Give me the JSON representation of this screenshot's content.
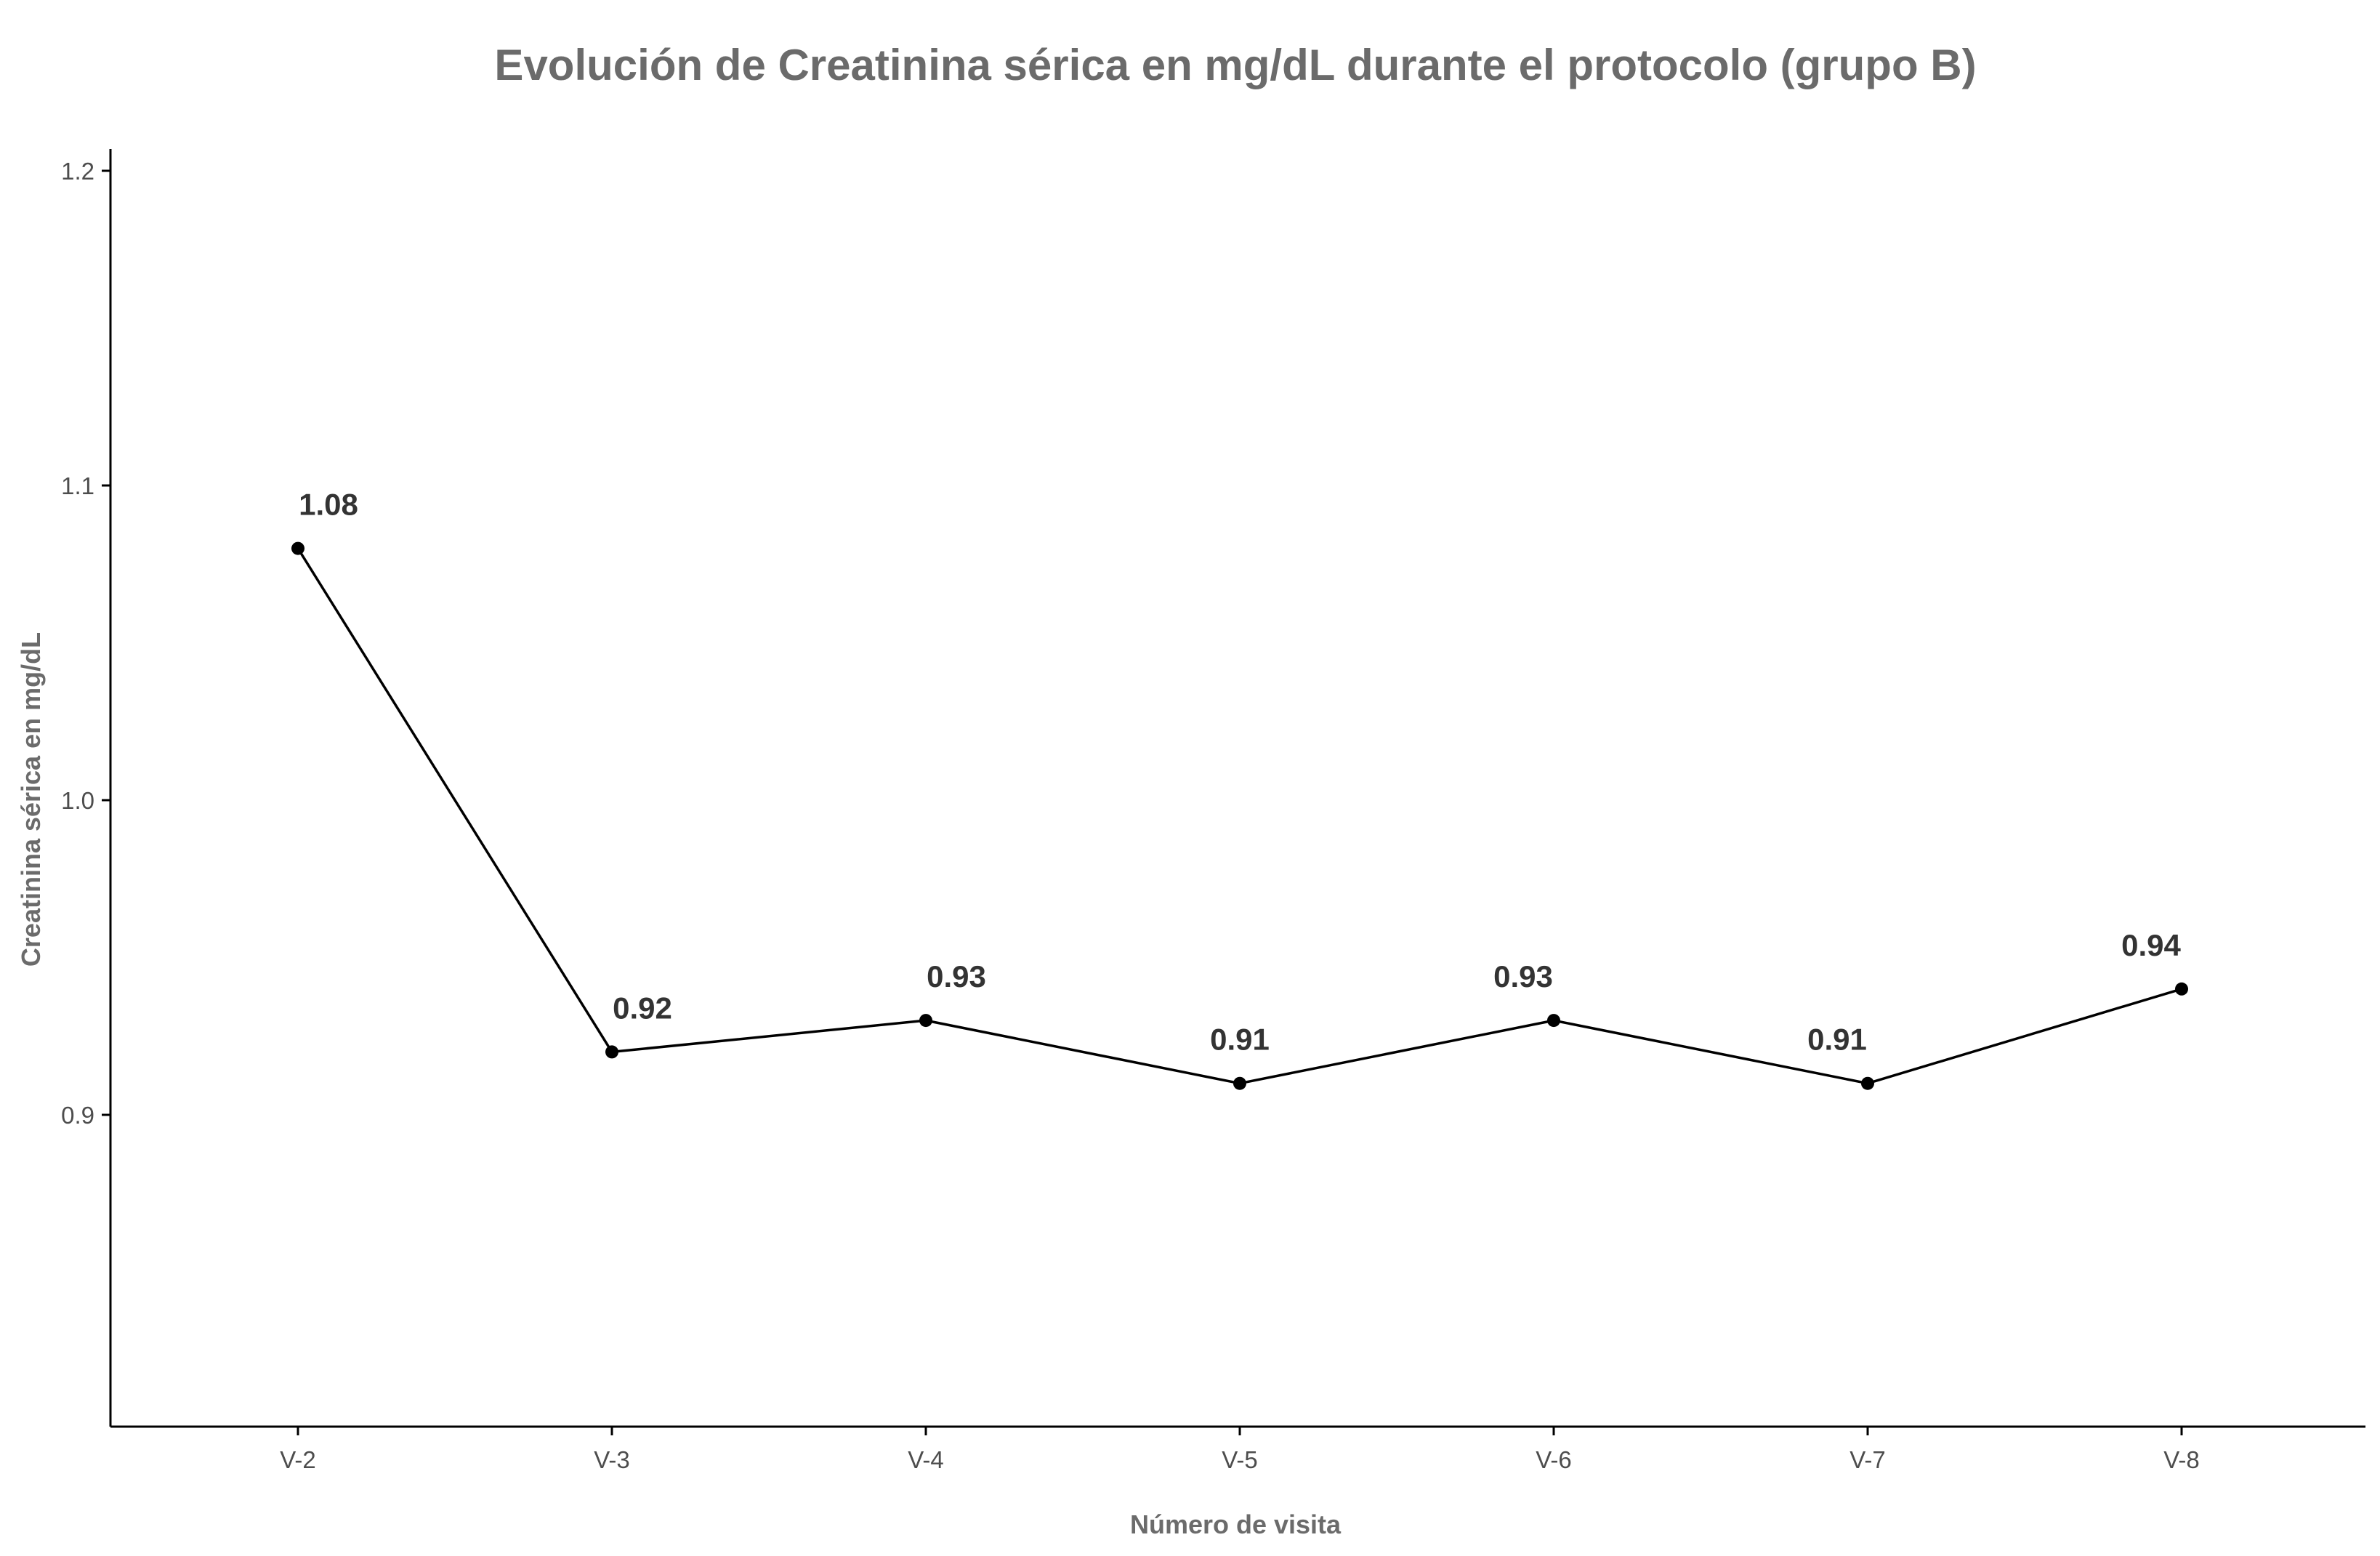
{
  "chart_data": {
    "type": "line",
    "title": "Evolución de Creatinina sérica en mg/dL durante el protocolo (grupo B)",
    "xlabel": "Número de visita",
    "ylabel": "Creatinina sérica en mg/dL",
    "categories": [
      "V-2",
      "V-3",
      "V-4",
      "V-5",
      "V-6",
      "V-7",
      "V-8"
    ],
    "values": [
      1.08,
      0.92,
      0.93,
      0.91,
      0.93,
      0.91,
      0.94
    ],
    "data_labels": [
      "1.08",
      "0.92",
      "0.93",
      "0.91",
      "0.93",
      "0.91",
      "0.94"
    ],
    "ylim": [
      0.8,
      1.2
    ],
    "yticks": [
      0.9,
      1.0,
      1.1,
      1.2
    ],
    "ytick_labels": [
      "0.9",
      "1.0",
      "1.1",
      "1.2"
    ],
    "grid": false,
    "legend": "none",
    "colors": {
      "line": "#000000",
      "point": "#000000",
      "title": "#6b6b6b",
      "axis_title": "#6b6b6b",
      "tick_label": "#4d4d4d",
      "data_label": "#333333"
    }
  }
}
